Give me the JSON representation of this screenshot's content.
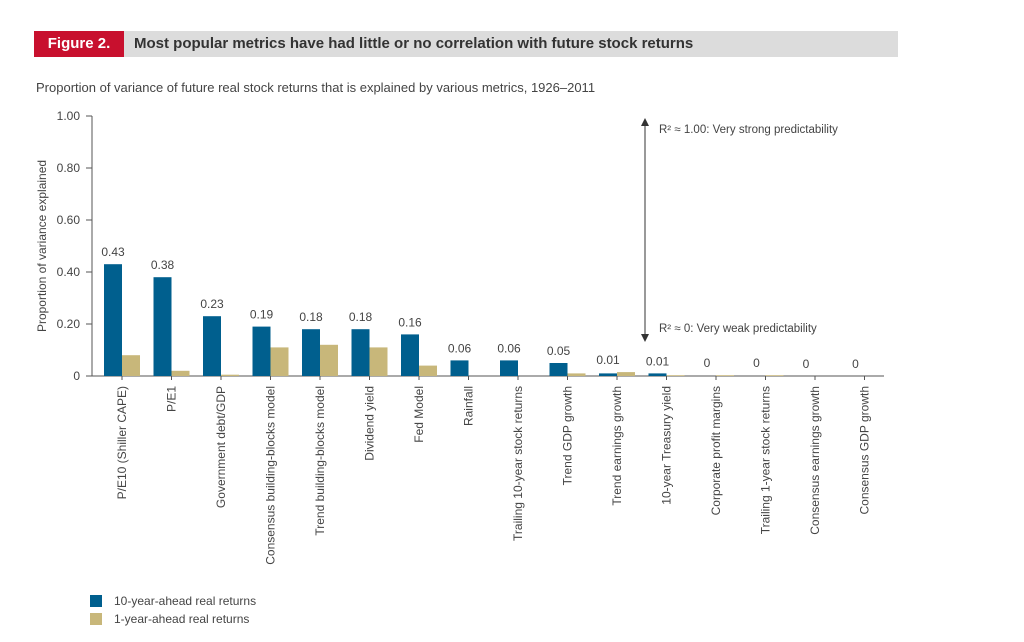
{
  "figure": {
    "tag": "Figure 2.",
    "title": "Most popular metrics have had little or no correlation with future stock returns",
    "subtitle": "Proportion of variance of future real stock returns that is explained by various metrics, 1926–2011",
    "tag_color": "#c8102e"
  },
  "chart_data": {
    "type": "bar",
    "title": "",
    "ylabel": "Proportion of variance explained",
    "xlabel": "",
    "ylim": [
      0,
      1.0
    ],
    "yticks": [
      "0",
      "0.20",
      "0.40",
      "0.60",
      "0.80",
      "1.00"
    ],
    "ytick_values": [
      0,
      0.2,
      0.4,
      0.6,
      0.8,
      1.0
    ],
    "grid": false,
    "categories": [
      "P/E10 (Shiller CAPE)",
      "P/E1",
      "Government debt/GDP",
      "Consensus building-blocks model",
      "Trend building-blocks model",
      "Dividend yield",
      "Fed Model",
      "Rainfall",
      "Trailing 10-year stock returns",
      "Trend GDP growth",
      "Trend earnings growth",
      "10-year Treasury yield",
      "Corporate profit margins",
      "Trailing 1-year stock returns",
      "Consensus earnings growth",
      "Consensus GDP growth"
    ],
    "series": [
      {
        "name": "10-year-ahead real returns",
        "color": "#005f8e",
        "values": [
          0.43,
          0.38,
          0.23,
          0.19,
          0.18,
          0.18,
          0.16,
          0.06,
          0.06,
          0.05,
          0.01,
          0.01,
          0,
          0,
          0,
          0
        ],
        "labels": [
          "0.43",
          "0.38",
          "0.23",
          "0.19",
          "0.18",
          "0.18",
          "0.16",
          "0.06",
          "0.06",
          "0.05",
          "0.01",
          "0.01",
          "0",
          "0",
          "0",
          "0"
        ]
      },
      {
        "name": "1-year-ahead real returns",
        "color": "#c8b77a",
        "values": [
          0.08,
          0.02,
          0.005,
          0.11,
          0.12,
          0.11,
          0.04,
          0.0,
          0.0,
          0.01,
          0.015,
          0.003,
          0.003,
          0.003,
          0.0,
          0.0
        ]
      }
    ],
    "annotations": [
      {
        "text": "R² ≈ 1.00: Very strong predictability",
        "y": 1.0
      },
      {
        "text": "R² ≈ 0: Very weak predictability",
        "y": 0.0
      }
    ],
    "legend_position": "bottom-left"
  }
}
